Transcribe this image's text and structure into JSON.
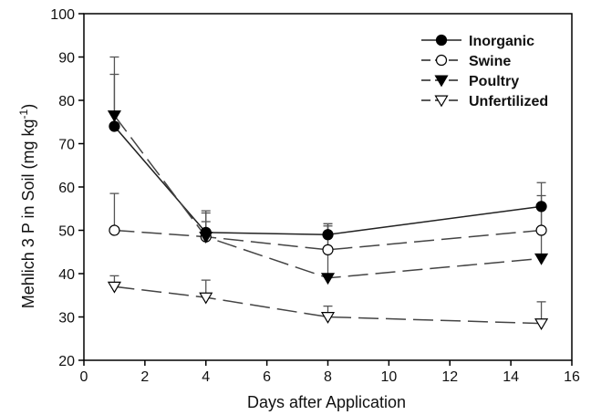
{
  "chart_data": {
    "type": "line",
    "xlabel": "Days after Application",
    "ylabel_main": "Mehlich 3 P in Soil (mg kg",
    "ylabel_sup": "-1",
    "ylabel_close": ")",
    "xlim": [
      0,
      16
    ],
    "ylim": [
      20,
      100
    ],
    "xticks": [
      0,
      2,
      4,
      6,
      8,
      10,
      12,
      14,
      16
    ],
    "yticks": [
      20,
      30,
      40,
      50,
      60,
      70,
      80,
      90,
      100
    ],
    "grid": false,
    "legend_position": "top-right",
    "x": [
      1,
      4,
      8,
      15
    ],
    "series": [
      {
        "name": "Inorganic",
        "marker": "circle-filled",
        "dash": "solid",
        "values": [
          74,
          49.5,
          49,
          55.5
        ],
        "err_upper": [
          86,
          54,
          51.5,
          61
        ]
      },
      {
        "name": "Swine",
        "marker": "circle-open",
        "dash": "long-dash",
        "values": [
          50,
          48.5,
          45.5,
          50
        ],
        "err_upper": [
          58.5,
          52,
          51,
          55
        ]
      },
      {
        "name": "Poultry",
        "marker": "triangle-down-filled",
        "dash": "long-dash",
        "values": [
          76.5,
          48.5,
          39,
          43.5
        ],
        "err_upper": [
          90,
          54.5,
          51.5,
          58
        ]
      },
      {
        "name": "Unfertilized",
        "marker": "triangle-down-open",
        "dash": "long-dash",
        "values": [
          37,
          34.5,
          30,
          28.5
        ],
        "err_upper": [
          39.5,
          38.5,
          32.5,
          33.5
        ]
      }
    ]
  }
}
